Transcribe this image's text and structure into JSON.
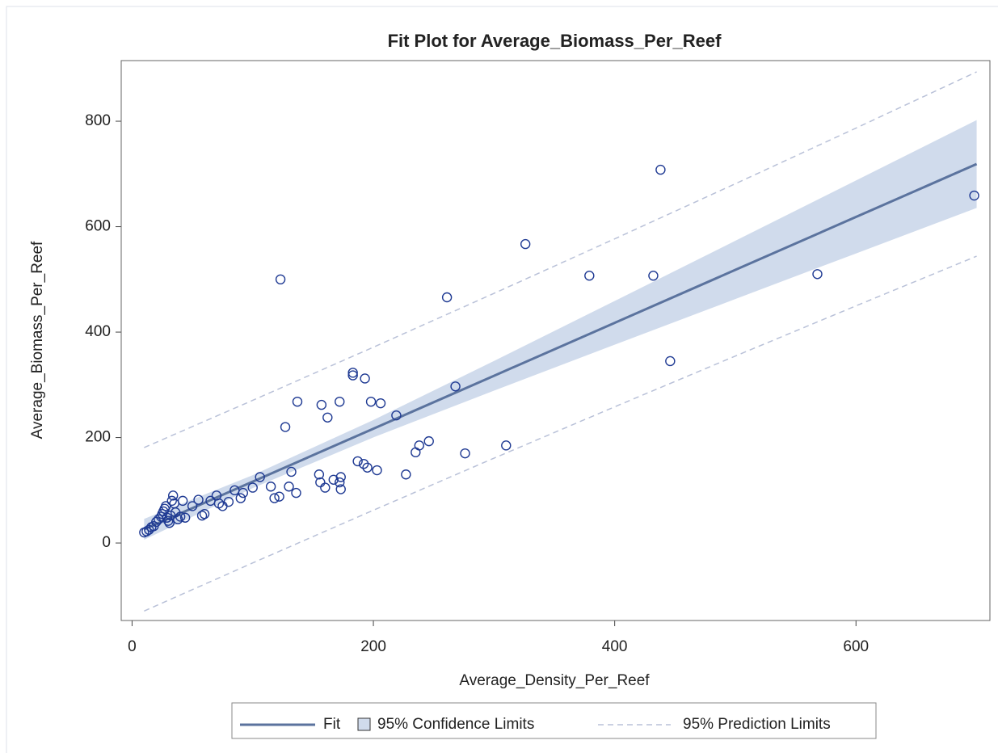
{
  "chart_data": {
    "type": "scatter",
    "title": "Fit Plot for Average_Biomass_Per_Reef",
    "x_label": "Average_Density_Per_Reef",
    "y_label": "Average_Biomass_Per_Reef",
    "xlim": [
      -9,
      711
    ],
    "ylim": [
      -147,
      915
    ],
    "xticks": [
      0,
      200,
      400,
      600
    ],
    "yticks": [
      0,
      200,
      400,
      600,
      800
    ],
    "legend": "bottom",
    "points": {
      "color": "#1f3a93",
      "x": [
        10,
        12,
        14,
        16,
        18,
        20,
        22,
        24,
        25,
        26,
        27,
        28,
        29,
        30,
        31,
        32,
        33,
        34,
        35,
        36,
        38,
        40,
        42,
        44,
        50,
        55,
        58,
        60,
        65,
        70,
        72,
        75,
        80,
        85,
        90,
        92,
        100,
        106,
        115,
        118,
        122,
        123,
        127,
        130,
        132,
        136,
        137,
        155,
        156,
        157,
        160,
        162,
        167,
        172,
        173,
        173,
        172,
        183,
        183,
        187,
        192,
        193,
        195,
        198,
        203,
        206,
        219,
        227,
        235,
        238,
        246,
        261,
        268,
        276,
        310,
        326,
        379,
        432,
        438,
        446,
        568,
        698
      ],
      "y": [
        20,
        22,
        25,
        30,
        32,
        40,
        45,
        50,
        55,
        60,
        65,
        70,
        48,
        42,
        38,
        52,
        80,
        90,
        75,
        58,
        45,
        50,
        80,
        48,
        70,
        82,
        52,
        55,
        80,
        90,
        75,
        70,
        78,
        100,
        85,
        95,
        105,
        125,
        107,
        85,
        88,
        500,
        220,
        107,
        135,
        95,
        268,
        130,
        115,
        262,
        105,
        238,
        120,
        115,
        125,
        102,
        268,
        323,
        318,
        155,
        150,
        312,
        143,
        268,
        138,
        265,
        242,
        130,
        172,
        185,
        193,
        466,
        297,
        170,
        185,
        567,
        507,
        507,
        708,
        345,
        510,
        659
      ]
    },
    "curve_x": [
      10,
      100,
      200,
      300,
      400,
      500,
      600,
      700
    ],
    "fit": {
      "name": "Fit",
      "color": "#5b739e",
      "values": [
        26.0,
        116.4,
        216.8,
        317.2,
        417.6,
        518.0,
        618.4,
        718.8
      ]
    },
    "confidence": {
      "name": "95% Confidence Limits",
      "color": "#d0dbec",
      "lower": [
        6.3,
        104.1,
        200.3,
        289.0,
        376.1,
        462.7,
        549.2,
        635.5
      ],
      "upper": [
        45.7,
        128.7,
        233.3,
        345.4,
        459.1,
        573.3,
        687.6,
        802.1
      ]
    },
    "prediction": {
      "name": "95% Prediction Limits",
      "color": "#b9c1d8",
      "lower": [
        -129.0,
        -37.8,
        62.2,
        160.9,
        258.3,
        354.6,
        449.8,
        544.0
      ],
      "upper": [
        181.0,
        270.6,
        371.4,
        473.5,
        576.9,
        681.4,
        787.0,
        893.6
      ]
    }
  }
}
